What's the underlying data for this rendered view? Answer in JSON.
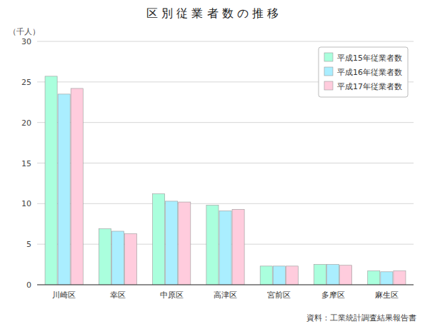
{
  "chart_data": {
    "type": "bar",
    "title": "区 別 従 業 者 数 の 推 移",
    "ylabel": "（千人）",
    "categories": [
      "川崎区",
      "幸区",
      "中原区",
      "高津区",
      "宮前区",
      "多摩区",
      "麻生区"
    ],
    "series": [
      {
        "name": "平成15年従業者数",
        "color": "#aaffdd",
        "values": [
          25.7,
          6.9,
          11.2,
          9.8,
          2.3,
          2.5,
          1.7
        ]
      },
      {
        "name": "平成16年従業者数",
        "color": "#aaeeff",
        "values": [
          23.5,
          6.6,
          10.3,
          9.1,
          2.3,
          2.5,
          1.6
        ]
      },
      {
        "name": "平成17年従業者数",
        "color": "#ffccdd",
        "values": [
          24.2,
          6.3,
          10.2,
          9.3,
          2.3,
          2.4,
          1.7
        ]
      }
    ],
    "ylim": [
      0,
      30
    ],
    "yticks": [
      0,
      5,
      10,
      15,
      20,
      25,
      30
    ],
    "grid": true,
    "legend": "upper right",
    "annotations": [
      "資料：工業統計調査結果報告書"
    ]
  }
}
